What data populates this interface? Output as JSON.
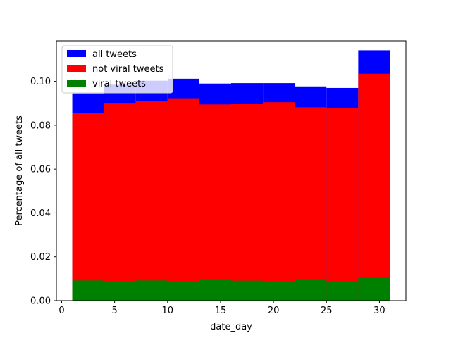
{
  "chart_data": {
    "type": "bar",
    "xlabel": "date_day",
    "ylabel": "Percentage of all tweets",
    "xlim": [
      -0.5,
      32.5
    ],
    "ylim": [
      0,
      0.1185
    ],
    "xticks": [
      0,
      5,
      10,
      15,
      20,
      25,
      30
    ],
    "yticks": [
      0.0,
      0.02,
      0.04,
      0.06,
      0.08,
      0.1
    ],
    "ytick_labels": [
      "0.00",
      "0.02",
      "0.04",
      "0.06",
      "0.08",
      "0.10"
    ],
    "bin_edges": [
      1,
      4,
      7,
      10,
      13,
      16,
      19,
      22,
      25,
      28,
      31
    ],
    "legend_position": "top-left",
    "series": [
      {
        "name": "all tweets",
        "color": "#0000ff",
        "values": [
          0.0945,
          0.0985,
          0.1003,
          0.1012,
          0.099,
          0.0992,
          0.0992,
          0.0977,
          0.097,
          0.1142
        ]
      },
      {
        "name": "not viral tweets",
        "color": "#ff0000",
        "values": [
          0.0855,
          0.0902,
          0.0912,
          0.0923,
          0.0895,
          0.0898,
          0.0905,
          0.0882,
          0.088,
          0.1035
        ]
      },
      {
        "name": "viral tweets",
        "color": "#008000",
        "values": [
          0.0092,
          0.0085,
          0.0092,
          0.0088,
          0.0094,
          0.0091,
          0.0087,
          0.0094,
          0.0089,
          0.0106
        ]
      }
    ]
  }
}
